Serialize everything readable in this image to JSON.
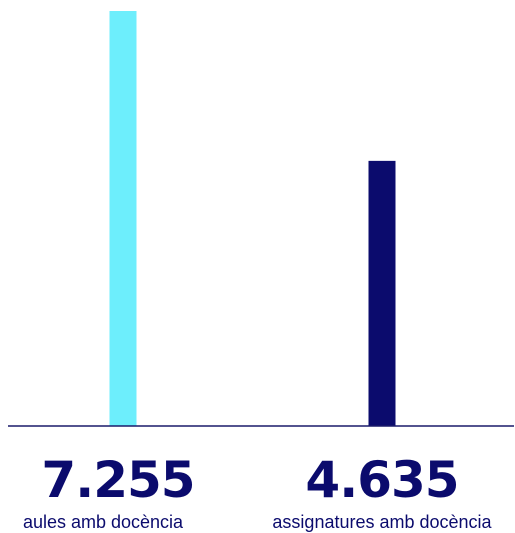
{
  "chart_data": {
    "type": "bar",
    "categories": [
      "aules amb docència",
      "assignatures amb docència"
    ],
    "values": [
      7255,
      4635
    ],
    "value_labels": [
      "7.255",
      "4.635"
    ],
    "bar_colors": [
      "#6deefc",
      "#0b0b6d"
    ],
    "text_color": "#0b0b6d",
    "axis_color": "#1a1a6a",
    "ylim": [
      0,
      7255
    ],
    "title": "",
    "xlabel": "",
    "ylabel": ""
  }
}
